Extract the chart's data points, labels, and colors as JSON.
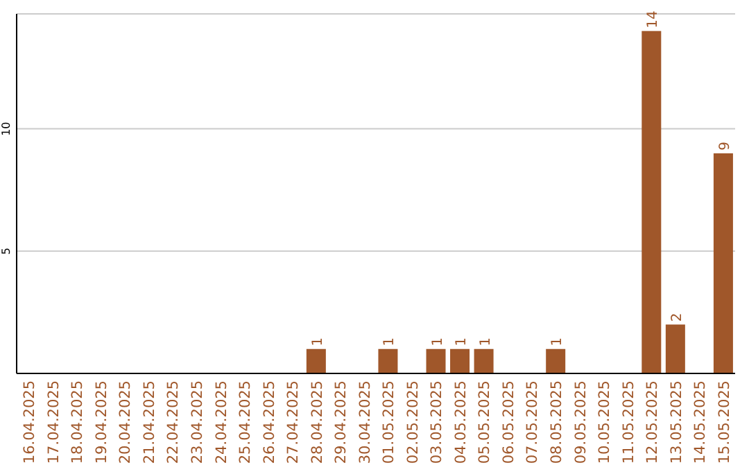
{
  "chart_data": {
    "type": "bar",
    "categories": [
      "16.04.2025",
      "17.04.2025",
      "18.04.2025",
      "19.04.2025",
      "20.04.2025",
      "21.04.2025",
      "22.04.2025",
      "23.04.2025",
      "24.04.2025",
      "25.04.2025",
      "26.04.2025",
      "27.04.2025",
      "28.04.2025",
      "29.04.2025",
      "30.04.2025",
      "01.05.2025",
      "02.05.2025",
      "03.05.2025",
      "04.05.2025",
      "05.05.2025",
      "06.05.2025",
      "07.05.2025",
      "08.05.2025",
      "09.05.2025",
      "10.05.2025",
      "11.05.2025",
      "12.05.2025",
      "13.05.2025",
      "14.05.2025",
      "15.05.2025"
    ],
    "values": [
      0,
      0,
      0,
      0,
      0,
      0,
      0,
      0,
      0,
      0,
      0,
      0,
      1,
      0,
      0,
      1,
      0,
      1,
      1,
      1,
      0,
      0,
      1,
      0,
      0,
      0,
      14,
      2,
      0,
      9
    ],
    "value_labels": [
      null,
      null,
      null,
      null,
      null,
      null,
      null,
      null,
      null,
      null,
      null,
      null,
      "1",
      null,
      null,
      "1",
      null,
      "1",
      "1",
      "1",
      null,
      null,
      "1",
      null,
      null,
      null,
      "14",
      "2",
      null,
      "9"
    ],
    "color": "#a0572a",
    "ylim": [
      0,
      14.7
    ],
    "yticks": [
      5,
      10
    ],
    "grid": "y"
  }
}
